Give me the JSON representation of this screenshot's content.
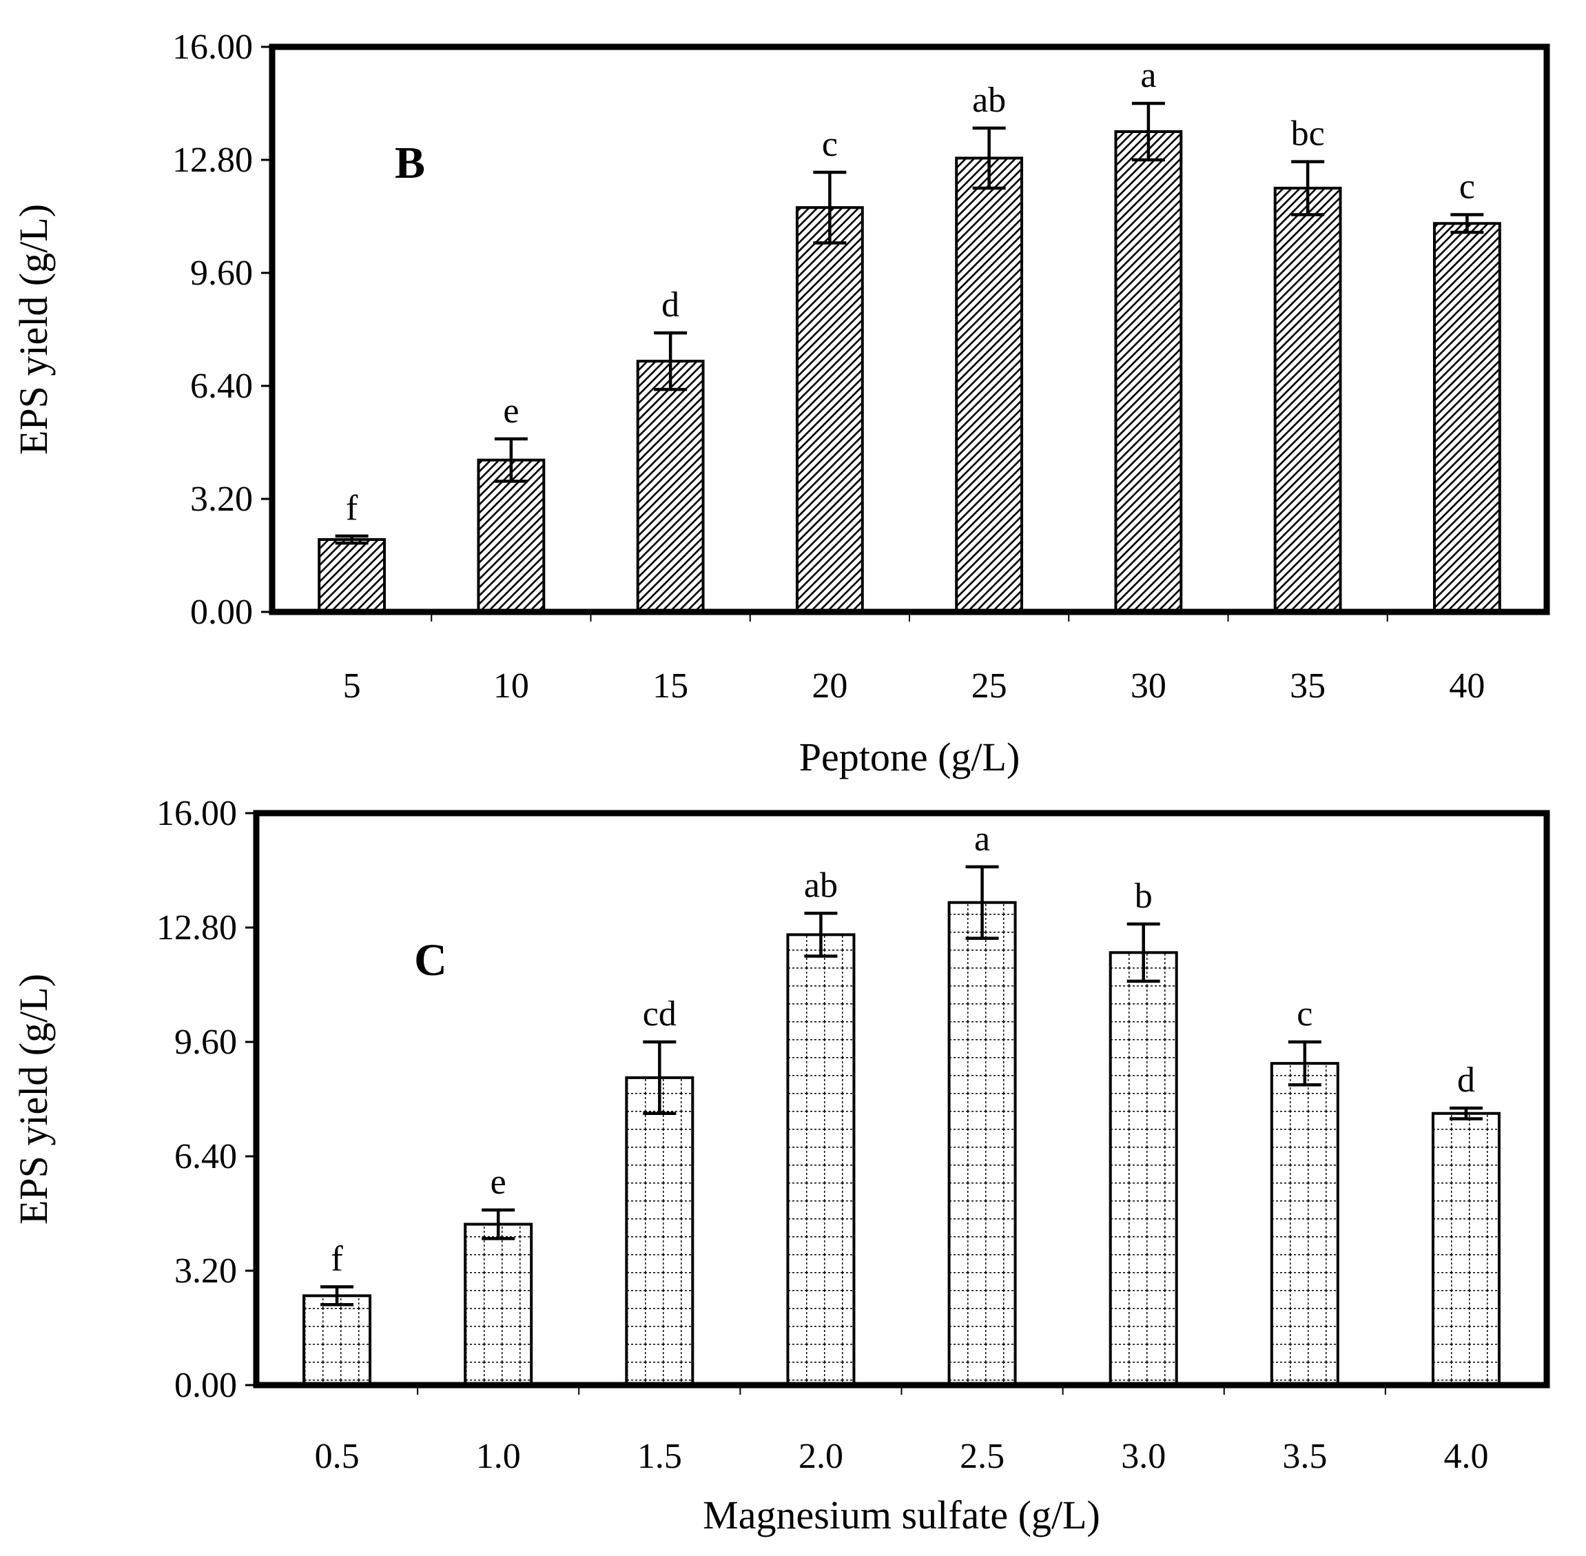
{
  "colors": {
    "ink": "#000000",
    "background": "#ffffff"
  },
  "chart_data": [
    {
      "type": "bar",
      "panel_label": "B",
      "fill_pattern": "diagonal-hatch",
      "categories": [
        "5",
        "10",
        "15",
        "20",
        "25",
        "30",
        "35",
        "40"
      ],
      "values": [
        2.05,
        4.3,
        7.1,
        11.45,
        12.85,
        13.6,
        12.0,
        11.0
      ],
      "errors": [
        0.1,
        0.6,
        0.8,
        1.0,
        0.85,
        0.8,
        0.75,
        0.25
      ],
      "significance_letters": [
        "f",
        "e",
        "d",
        "c",
        "ab",
        "a",
        "bc",
        "c"
      ],
      "xlabel": "Peptone (g/L)",
      "ylabel": "EPS yield (g/L)",
      "ylim": [
        0,
        16
      ],
      "yticks": [
        "0.00",
        "3.20",
        "6.40",
        "9.60",
        "12.80",
        "16.00"
      ],
      "grid": false
    },
    {
      "type": "bar",
      "panel_label": "C",
      "fill_pattern": "dotted-grid",
      "categories": [
        "0.5",
        "1.0",
        "1.5",
        "2.0",
        "2.5",
        "3.0",
        "3.5",
        "4.0"
      ],
      "values": [
        2.5,
        4.5,
        8.6,
        12.6,
        13.5,
        12.1,
        9.0,
        7.6
      ],
      "errors": [
        0.25,
        0.4,
        1.0,
        0.6,
        1.0,
        0.8,
        0.6,
        0.15
      ],
      "significance_letters": [
        "f",
        "e",
        "cd",
        "ab",
        "a",
        "b",
        "c",
        "d"
      ],
      "xlabel": "Magnesium sulfate (g/L)",
      "ylabel": "EPS yield (g/L)",
      "ylim": [
        0,
        16
      ],
      "yticks": [
        "0.00",
        "3.20",
        "6.40",
        "9.60",
        "12.80",
        "16.00"
      ],
      "grid": false
    }
  ]
}
